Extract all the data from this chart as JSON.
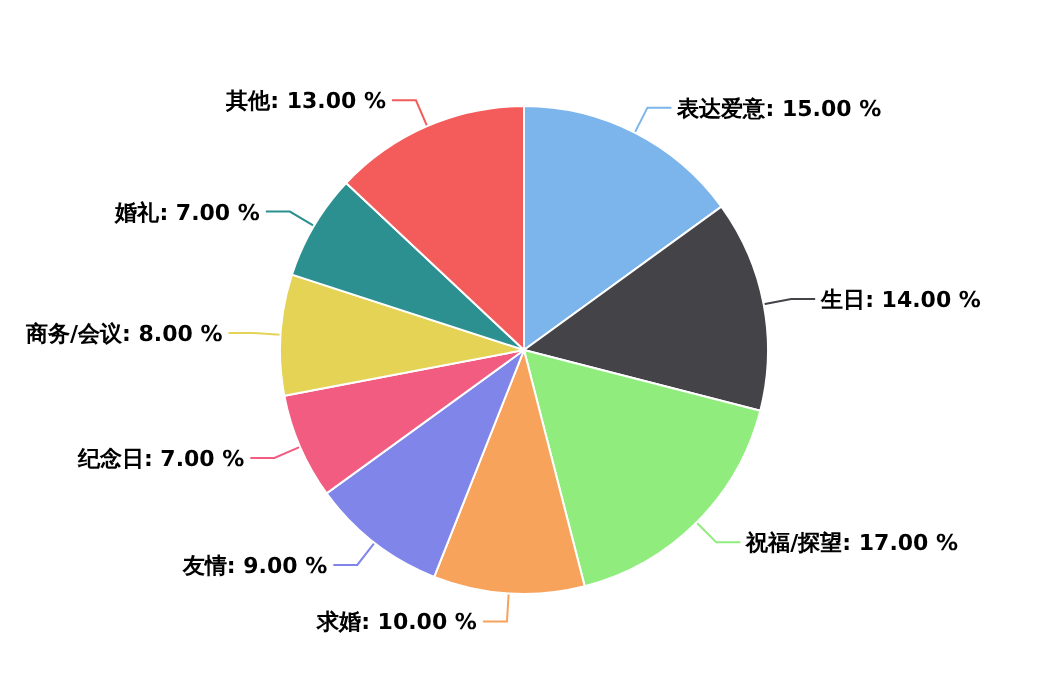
{
  "chart_data": {
    "type": "pie",
    "categories": [
      "表达爱意",
      "生日",
      "祝福/探望",
      "求婚",
      "友情",
      "纪念日",
      "商务/会议",
      "婚礼",
      "其他"
    ],
    "values": [
      15,
      14,
      17,
      10,
      9,
      7,
      8,
      7,
      13
    ],
    "value_labels": [
      "15.00 %",
      "14.00 %",
      "17.00 %",
      "10.00 %",
      "9.00 %",
      "7.00 %",
      "8.00 %",
      "7.00 %",
      "13.00 %"
    ],
    "colors": [
      "#7cb5ec",
      "#434348",
      "#90ed7d",
      "#f7a35c",
      "#8085e9",
      "#f15c80",
      "#e4d354",
      "#2b908f",
      "#f45b5b"
    ]
  }
}
